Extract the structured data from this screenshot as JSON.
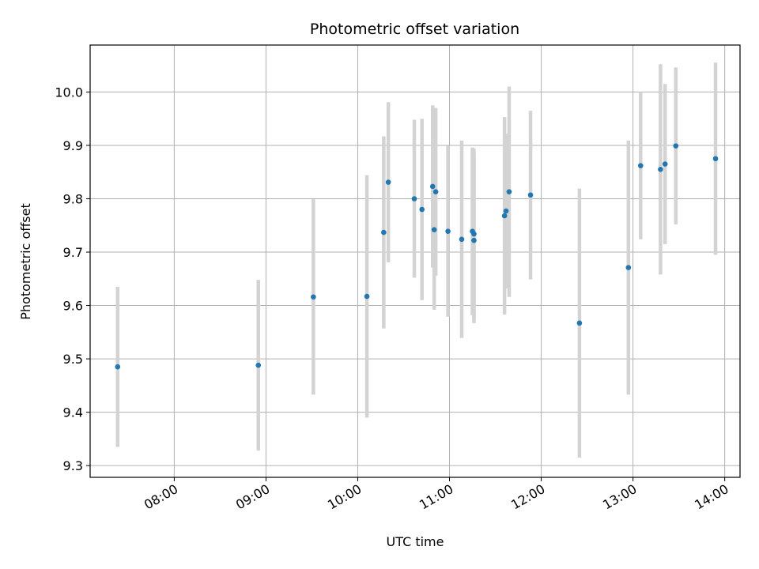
{
  "chart_data": {
    "type": "scatter",
    "title": "Photometric offset variation",
    "xlabel": "UTC time",
    "ylabel": "Photometric offset",
    "grid": true,
    "colors": {
      "points": "#1f77b4",
      "errorbars": "#d3d3d3",
      "grid": "#b0b0b0"
    },
    "xlim": [
      "07:05",
      "14:10"
    ],
    "ylim": [
      9.278,
      10.088
    ],
    "x_ticks": [
      "08:00",
      "09:00",
      "10:00",
      "11:00",
      "12:00",
      "13:00",
      "14:00"
    ],
    "y_ticks": [
      "9.3",
      "9.4",
      "9.5",
      "9.6",
      "9.7",
      "9.8",
      "9.9",
      "10.0"
    ],
    "points": [
      {
        "x": "07:23",
        "y": 9.485,
        "err": 0.15
      },
      {
        "x": "08:55",
        "y": 9.488,
        "err": 0.16
      },
      {
        "x": "09:31",
        "y": 9.616,
        "err": 0.183
      },
      {
        "x": "10:06",
        "y": 9.617,
        "err": 0.227
      },
      {
        "x": "10:17",
        "y": 9.737,
        "err": 0.18
      },
      {
        "x": "10:20",
        "y": 9.831,
        "err": 0.15
      },
      {
        "x": "10:37",
        "y": 9.8,
        "err": 0.148
      },
      {
        "x": "10:42",
        "y": 9.78,
        "err": 0.17
      },
      {
        "x": "10:49",
        "y": 9.823,
        "err": 0.152
      },
      {
        "x": "10:50",
        "y": 9.742,
        "err": 0.15
      },
      {
        "x": "10:51",
        "y": 9.813,
        "err": 0.157
      },
      {
        "x": "10:59",
        "y": 9.739,
        "err": 0.16
      },
      {
        "x": "11:08",
        "y": 9.724,
        "err": 0.185
      },
      {
        "x": "11:15",
        "y": 9.739,
        "err": 0.157
      },
      {
        "x": "11:16",
        "y": 9.722,
        "err": 0.155
      },
      {
        "x": "11:16",
        "y": 9.734,
        "err": 0.16
      },
      {
        "x": "11:36",
        "y": 9.768,
        "err": 0.185
      },
      {
        "x": "11:37",
        "y": 9.777,
        "err": 0.145
      },
      {
        "x": "11:39",
        "y": 9.813,
        "err": 0.197
      },
      {
        "x": "11:53",
        "y": 9.807,
        "err": 0.158
      },
      {
        "x": "12:25",
        "y": 9.567,
        "err": 0.252
      },
      {
        "x": "12:57",
        "y": 9.671,
        "err": 0.238
      },
      {
        "x": "13:05",
        "y": 9.862,
        "err": 0.138
      },
      {
        "x": "13:18",
        "y": 9.855,
        "err": 0.197
      },
      {
        "x": "13:21",
        "y": 9.865,
        "err": 0.15
      },
      {
        "x": "13:28",
        "y": 9.899,
        "err": 0.147
      },
      {
        "x": "13:54",
        "y": 9.875,
        "err": 0.18
      }
    ]
  }
}
